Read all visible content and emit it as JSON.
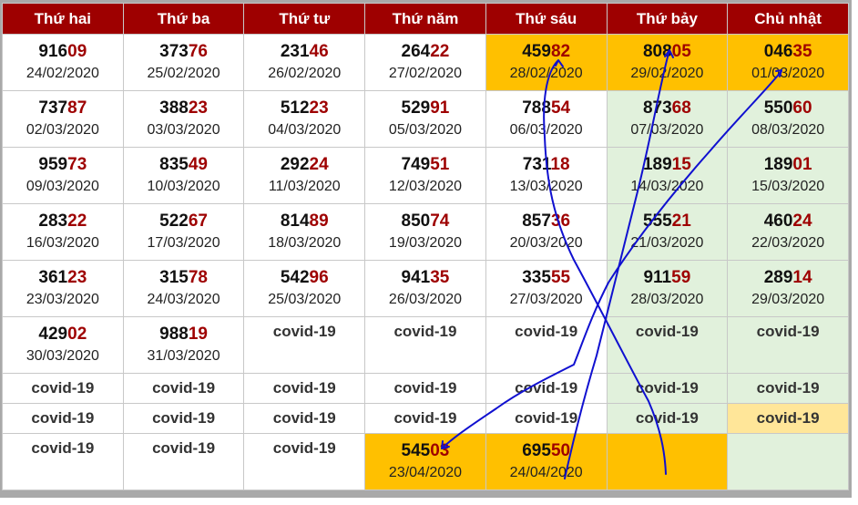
{
  "headers": [
    "Thứ hai",
    "Thứ ba",
    "Thứ tư",
    "Thứ năm",
    "Thứ sáu",
    "Thứ bảy",
    "Chủ nhật"
  ],
  "rows": [
    [
      {
        "type": "result",
        "head": "916",
        "tail": "09",
        "date": "24/02/2020",
        "bg": "white"
      },
      {
        "type": "result",
        "head": "373",
        "tail": "76",
        "date": "25/02/2020",
        "bg": "white"
      },
      {
        "type": "result",
        "head": "231",
        "tail": "46",
        "date": "26/02/2020",
        "bg": "white"
      },
      {
        "type": "result",
        "head": "264",
        "tail": "22",
        "date": "27/02/2020",
        "bg": "white"
      },
      {
        "type": "result",
        "head": "459",
        "tail": "82",
        "date": "28/02/2020",
        "bg": "orange"
      },
      {
        "type": "result",
        "head": "808",
        "tail": "05",
        "date": "29/02/2020",
        "bg": "orange"
      },
      {
        "type": "result",
        "head": "046",
        "tail": "35",
        "date": "01/03/2020",
        "bg": "orange"
      }
    ],
    [
      {
        "type": "result",
        "head": "737",
        "tail": "87",
        "date": "02/03/2020",
        "bg": "white"
      },
      {
        "type": "result",
        "head": "388",
        "tail": "23",
        "date": "03/03/2020",
        "bg": "white"
      },
      {
        "type": "result",
        "head": "512",
        "tail": "23",
        "date": "04/03/2020",
        "bg": "white"
      },
      {
        "type": "result",
        "head": "529",
        "tail": "91",
        "date": "05/03/2020",
        "bg": "white"
      },
      {
        "type": "result",
        "head": "788",
        "tail": "54",
        "date": "06/03/2020",
        "bg": "white"
      },
      {
        "type": "result",
        "head": "873",
        "tail": "68",
        "date": "07/03/2020",
        "bg": "green"
      },
      {
        "type": "result",
        "head": "550",
        "tail": "60",
        "date": "08/03/2020",
        "bg": "green"
      }
    ],
    [
      {
        "type": "result",
        "head": "959",
        "tail": "73",
        "date": "09/03/2020",
        "bg": "white"
      },
      {
        "type": "result",
        "head": "835",
        "tail": "49",
        "date": "10/03/2020",
        "bg": "white"
      },
      {
        "type": "result",
        "head": "292",
        "tail": "24",
        "date": "11/03/2020",
        "bg": "white"
      },
      {
        "type": "result",
        "head": "749",
        "tail": "51",
        "date": "12/03/2020",
        "bg": "white"
      },
      {
        "type": "result",
        "head": "731",
        "tail": "18",
        "date": "13/03/2020",
        "bg": "white"
      },
      {
        "type": "result",
        "head": "189",
        "tail": "15",
        "date": "14/03/2020",
        "bg": "green"
      },
      {
        "type": "result",
        "head": "189",
        "tail": "01",
        "date": "15/03/2020",
        "bg": "green"
      }
    ],
    [
      {
        "type": "result",
        "head": "283",
        "tail": "22",
        "date": "16/03/2020",
        "bg": "white"
      },
      {
        "type": "result",
        "head": "522",
        "tail": "67",
        "date": "17/03/2020",
        "bg": "white"
      },
      {
        "type": "result",
        "head": "814",
        "tail": "89",
        "date": "18/03/2020",
        "bg": "white"
      },
      {
        "type": "result",
        "head": "850",
        "tail": "74",
        "date": "19/03/2020",
        "bg": "white"
      },
      {
        "type": "result",
        "head": "857",
        "tail": "36",
        "date": "20/03/2020",
        "bg": "white"
      },
      {
        "type": "result",
        "head": "555",
        "tail": "21",
        "date": "21/03/2020",
        "bg": "green"
      },
      {
        "type": "result",
        "head": "460",
        "tail": "24",
        "date": "22/03/2020",
        "bg": "green"
      }
    ],
    [
      {
        "type": "result",
        "head": "361",
        "tail": "23",
        "date": "23/03/2020",
        "bg": "white"
      },
      {
        "type": "result",
        "head": "315",
        "tail": "78",
        "date": "24/03/2020",
        "bg": "white"
      },
      {
        "type": "result",
        "head": "542",
        "tail": "96",
        "date": "25/03/2020",
        "bg": "white"
      },
      {
        "type": "result",
        "head": "941",
        "tail": "35",
        "date": "26/03/2020",
        "bg": "white"
      },
      {
        "type": "result",
        "head": "335",
        "tail": "55",
        "date": "27/03/2020",
        "bg": "white"
      },
      {
        "type": "result",
        "head": "911",
        "tail": "59",
        "date": "28/03/2020",
        "bg": "green"
      },
      {
        "type": "result",
        "head": "289",
        "tail": "14",
        "date": "29/03/2020",
        "bg": "green"
      }
    ],
    [
      {
        "type": "result",
        "head": "429",
        "tail": "02",
        "date": "30/03/2020",
        "bg": "white"
      },
      {
        "type": "result",
        "head": "988",
        "tail": "19",
        "date": "31/03/2020",
        "bg": "white"
      },
      {
        "type": "covid",
        "text": "covid-19",
        "bg": "white"
      },
      {
        "type": "covid",
        "text": "covid-19",
        "bg": "white"
      },
      {
        "type": "covid",
        "text": "covid-19",
        "bg": "white"
      },
      {
        "type": "covid",
        "text": "covid-19",
        "bg": "green"
      },
      {
        "type": "covid",
        "text": "covid-19",
        "bg": "green"
      }
    ],
    [
      {
        "type": "covid",
        "text": "covid-19",
        "bg": "white"
      },
      {
        "type": "covid",
        "text": "covid-19",
        "bg": "white"
      },
      {
        "type": "covid",
        "text": "covid-19",
        "bg": "white"
      },
      {
        "type": "covid",
        "text": "covid-19",
        "bg": "white"
      },
      {
        "type": "covid",
        "text": "covid-19",
        "bg": "white"
      },
      {
        "type": "covid",
        "text": "covid-19",
        "bg": "green"
      },
      {
        "type": "covid",
        "text": "covid-19",
        "bg": "green"
      }
    ],
    [
      {
        "type": "covid",
        "text": "covid-19",
        "bg": "white"
      },
      {
        "type": "covid",
        "text": "covid-19",
        "bg": "white"
      },
      {
        "type": "covid",
        "text": "covid-19",
        "bg": "white"
      },
      {
        "type": "covid",
        "text": "covid-19",
        "bg": "white"
      },
      {
        "type": "covid",
        "text": "covid-19",
        "bg": "white"
      },
      {
        "type": "covid",
        "text": "covid-19",
        "bg": "green"
      },
      {
        "type": "covid",
        "text": "covid-19",
        "bg": "yellow"
      }
    ],
    [
      {
        "type": "covid",
        "text": "covid-19",
        "bg": "white"
      },
      {
        "type": "covid",
        "text": "covid-19",
        "bg": "white"
      },
      {
        "type": "covid",
        "text": "covid-19",
        "bg": "white"
      },
      {
        "type": "result",
        "head": "545",
        "tail": "03",
        "date": "23/04/2020",
        "bg": "orange"
      },
      {
        "type": "result",
        "head": "695",
        "tail": "50",
        "date": "24/04/2020",
        "bg": "orange"
      },
      {
        "type": "empty",
        "bg": "orange"
      },
      {
        "type": "empty",
        "bg": "green"
      }
    ]
  ],
  "colors": {
    "header_bg": "#9e0000",
    "tail_digits": "#9e0000",
    "orange": "#ffc000",
    "green": "#e1f1dc",
    "yellow": "#ffe699",
    "annotation_ink": "#1010d0"
  }
}
